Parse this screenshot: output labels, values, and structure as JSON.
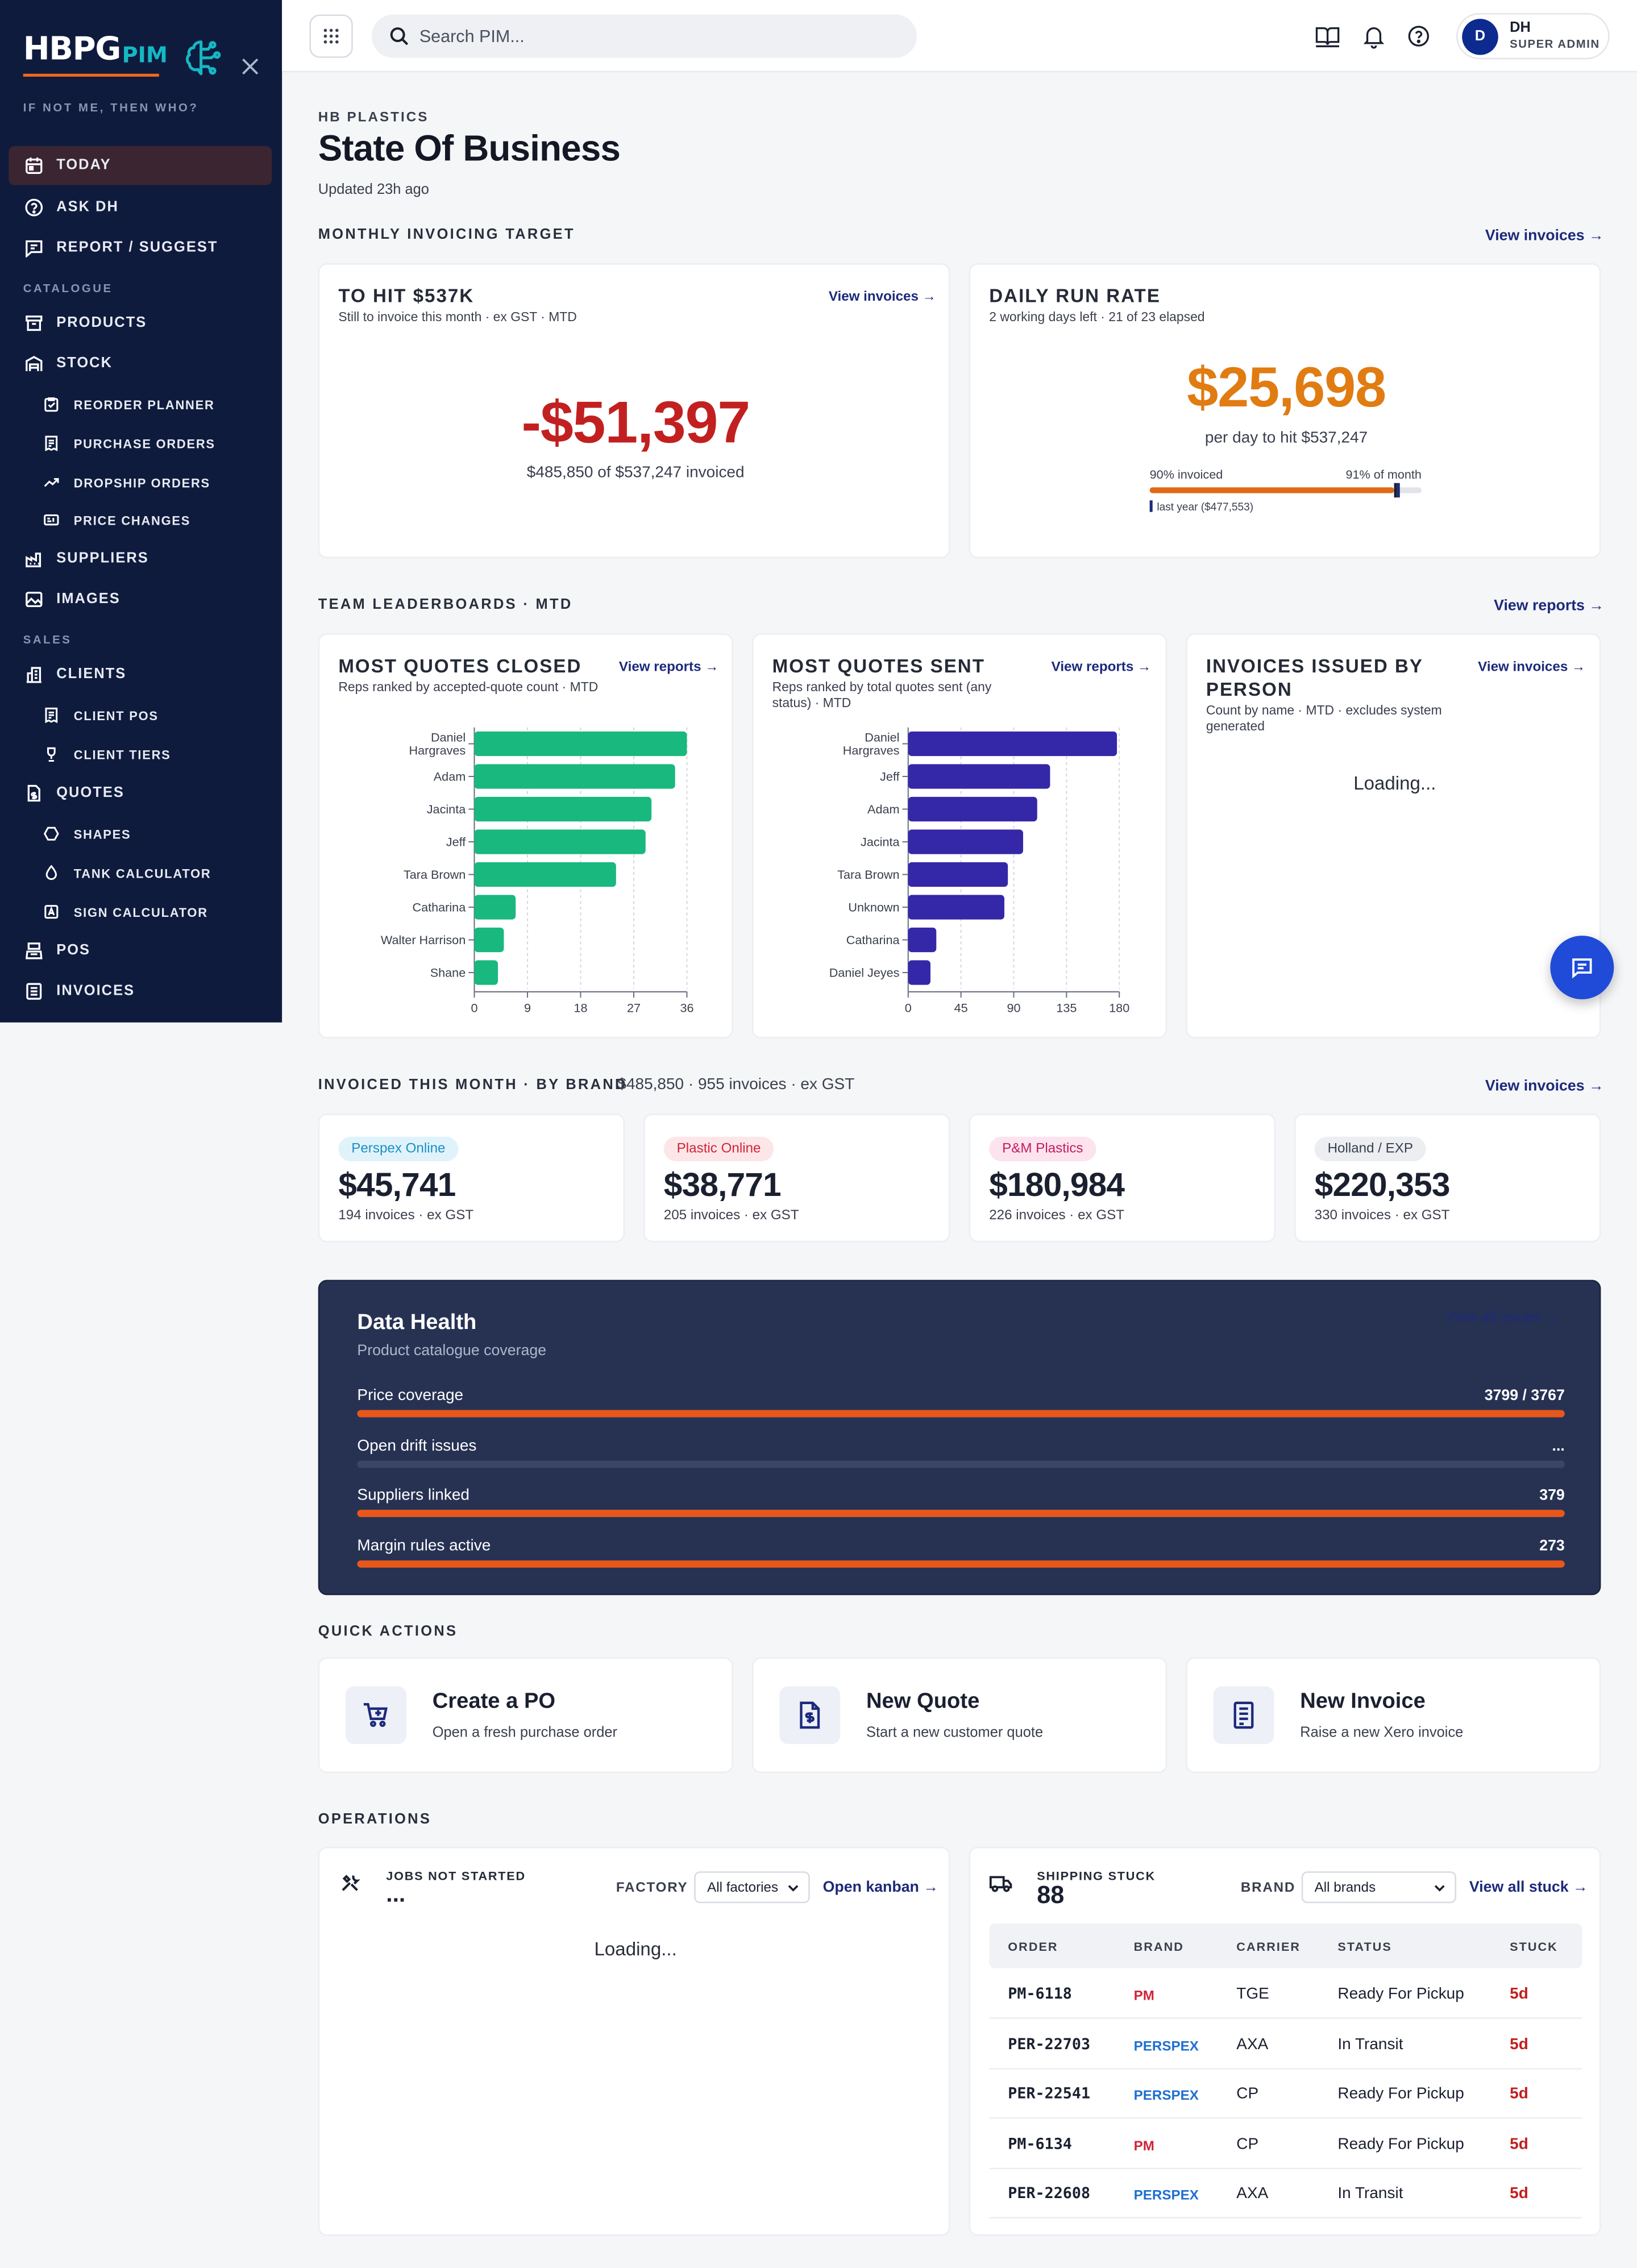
{
  "app": {
    "logo_main": "HBPG",
    "logo_pim": "PIM",
    "tagline": "IF NOT ME, THEN WHO?"
  },
  "sidebar": {
    "items": [
      {
        "label": "TODAY",
        "icon": "calendar-icon",
        "active": true
      },
      {
        "label": "ASK DH",
        "icon": "help-circle-icon"
      },
      {
        "label": "REPORT / SUGGEST",
        "icon": "message-square-icon"
      }
    ],
    "section_catalogue": "CATALOGUE",
    "catalogue": [
      {
        "label": "PRODUCTS",
        "icon": "archive-icon"
      },
      {
        "label": "STOCK",
        "icon": "warehouse-icon"
      },
      {
        "label": "REORDER PLANNER",
        "icon": "clipboard-icon"
      },
      {
        "label": "PURCHASE ORDERS",
        "icon": "receipt-icon"
      },
      {
        "label": "DROPSHIP ORDERS",
        "icon": "trend-icon"
      },
      {
        "label": "PRICE CHANGES",
        "icon": "tag-icon"
      },
      {
        "label": "SUPPLIERS",
        "icon": "factory-icon"
      },
      {
        "label": "IMAGES",
        "icon": "image-icon"
      }
    ],
    "section_sales": "SALES",
    "sales": [
      {
        "label": "CLIENTS",
        "icon": "building-icon"
      },
      {
        "label": "CLIENT POS",
        "icon": "receipt-icon"
      },
      {
        "label": "CLIENT TIERS",
        "icon": "trophy-icon"
      },
      {
        "label": "QUOTES",
        "icon": "file-dollar-icon"
      },
      {
        "label": "SHAPES",
        "icon": "hexagon-icon"
      },
      {
        "label": "TANK CALCULATOR",
        "icon": "droplet-icon"
      },
      {
        "label": "SIGN CALCULATOR",
        "icon": "sign-icon"
      },
      {
        "label": "POS",
        "icon": "register-icon"
      },
      {
        "label": "INVOICES",
        "icon": "invoice-icon"
      }
    ]
  },
  "topbar": {
    "search_placeholder": "Search PIM...",
    "user_initial": "D",
    "user_name": "DH",
    "user_role": "SUPER ADMIN"
  },
  "page": {
    "eyebrow": "HB PLASTICS",
    "title": "State Of Business",
    "updated": "Updated 23h ago"
  },
  "monthly": {
    "heading": "MONTHLY INVOICING TARGET",
    "link": "View invoices →",
    "to_hit": {
      "title": "TO HIT $537K",
      "sub": "Still to invoice this month · ex GST · MTD",
      "link": "View invoices →",
      "value": "-$51,397",
      "caption": "$485,850 of $537,247 invoiced"
    },
    "run_rate": {
      "title": "DAILY RUN RATE",
      "sub": "2 working days left · 21 of 23 elapsed",
      "value": "$25,698",
      "caption": "per day to hit $537,247",
      "invoiced_label": "90% invoiced",
      "month_label": "91% of month",
      "invoiced_fraction": 0.9,
      "month_fraction": 0.91,
      "last_year_label": "last year ($477,553)",
      "accent": "#e07c12"
    }
  },
  "leaderboards": {
    "heading": "TEAM LEADERBOARDS · MTD",
    "link": "View reports →",
    "closed": {
      "title": "MOST QUOTES CLOSED",
      "sub": "Reps ranked by accepted-quote count · MTD",
      "link": "View reports →"
    },
    "sent": {
      "title": "MOST QUOTES SENT",
      "sub": "Reps ranked by total quotes sent (any status) · MTD",
      "link": "View reports →"
    },
    "invoices": {
      "title": "INVOICES ISSUED BY PERSON",
      "sub": "Count by name · MTD · excludes system generated",
      "link": "View invoices →",
      "status": "Loading..."
    }
  },
  "chart_data": [
    {
      "type": "bar",
      "orientation": "horizontal",
      "categories": [
        "Daniel Hargraves",
        "Adam",
        "Jacinta",
        "Jeff",
        "Tara Brown",
        "Catharina",
        "Walter Harrison",
        "Shane"
      ],
      "values": [
        36,
        34,
        30,
        29,
        24,
        7,
        5,
        4
      ],
      "xlim": [
        0,
        36
      ],
      "xticks": [
        0,
        9,
        18,
        27,
        36
      ],
      "color": "#19b87e",
      "grid": true
    },
    {
      "type": "bar",
      "orientation": "horizontal",
      "categories": [
        "Daniel Hargraves",
        "Jeff",
        "Adam",
        "Jacinta",
        "Tara Brown",
        "Unknown",
        "Catharina",
        "Daniel Jeyes"
      ],
      "values": [
        178,
        121,
        110,
        98,
        85,
        82,
        24,
        19
      ],
      "xlim": [
        0,
        180
      ],
      "xticks": [
        0,
        45,
        90,
        135,
        180
      ],
      "color": "#3428a8",
      "grid": true
    }
  ],
  "brands": {
    "heading": "INVOICED THIS MONTH · BY BRAND",
    "summary": "$485,850 · 955 invoices · ex GST",
    "link": "View invoices →",
    "cards": [
      {
        "name": "Perspex Online",
        "value": "$45,741",
        "count": "194 invoices · ex GST",
        "pill_bg": "#e0f3fb",
        "pill_fg": "#1c8fc4"
      },
      {
        "name": "Plastic Online",
        "value": "$38,771",
        "count": "205 invoices · ex GST",
        "pill_bg": "#fde6e8",
        "pill_fg": "#d0243a"
      },
      {
        "name": "P&M Plastics",
        "value": "$180,984",
        "count": "226 invoices · ex GST",
        "pill_bg": "#fde3ee",
        "pill_fg": "#c21d5c"
      },
      {
        "name": "Holland / EXP",
        "value": "$220,353",
        "count": "330 invoices · ex GST",
        "pill_bg": "#eceef2",
        "pill_fg": "#3a3f4d"
      }
    ]
  },
  "health": {
    "title": "Data Health",
    "sub": "Product catalogue coverage",
    "link": "View all issues →",
    "rows": [
      {
        "label": "Price coverage",
        "value": "3799 / 3767",
        "fraction": 1
      },
      {
        "label": "Open drift issues",
        "value": "...",
        "fraction": 0
      },
      {
        "label": "Suppliers linked",
        "value": "379",
        "fraction": 1
      },
      {
        "label": "Margin rules active",
        "value": "273",
        "fraction": 1
      }
    ]
  },
  "quick_actions": {
    "heading": "QUICK ACTIONS",
    "items": [
      {
        "title": "Create a PO",
        "sub": "Open a fresh purchase order",
        "icon": "cart-plus-icon"
      },
      {
        "title": "New Quote",
        "sub": "Start a new customer quote",
        "icon": "file-dollar-icon"
      },
      {
        "title": "New Invoice",
        "sub": "Raise a new Xero invoice",
        "icon": "invoice-icon"
      }
    ]
  },
  "operations": {
    "heading": "OPERATIONS",
    "jobs": {
      "title": "JOBS NOT STARTED",
      "count": "...",
      "factory_label": "FACTORY",
      "factory_value": "All factories",
      "link": "Open kanban →",
      "status": "Loading..."
    },
    "shipping": {
      "title": "SHIPPING STUCK",
      "count": "88",
      "brand_label": "BRAND",
      "brand_value": "All brands",
      "link": "View all stuck →",
      "columns": [
        "ORDER",
        "BRAND",
        "CARRIER",
        "STATUS",
        "STUCK"
      ],
      "rows": [
        {
          "order": "PM-6118",
          "brand": "PM",
          "carrier": "TGE",
          "status": "Ready For Pickup",
          "stuck": "5d"
        },
        {
          "order": "PER-22703",
          "brand": "PERSPEX",
          "carrier": "AXA",
          "status": "In Transit",
          "stuck": "5d"
        },
        {
          "order": "PER-22541",
          "brand": "PERSPEX",
          "carrier": "CP",
          "status": "Ready For Pickup",
          "stuck": "5d"
        },
        {
          "order": "PM-6134",
          "brand": "PM",
          "carrier": "CP",
          "status": "Ready For Pickup",
          "stuck": "5d"
        },
        {
          "order": "PER-22608",
          "brand": "PERSPEX",
          "carrier": "AXA",
          "status": "In Transit",
          "stuck": "5d"
        }
      ],
      "brand_colors": {
        "PM": "#d0243a",
        "PERSPEX": "#1f6fd1"
      }
    }
  }
}
